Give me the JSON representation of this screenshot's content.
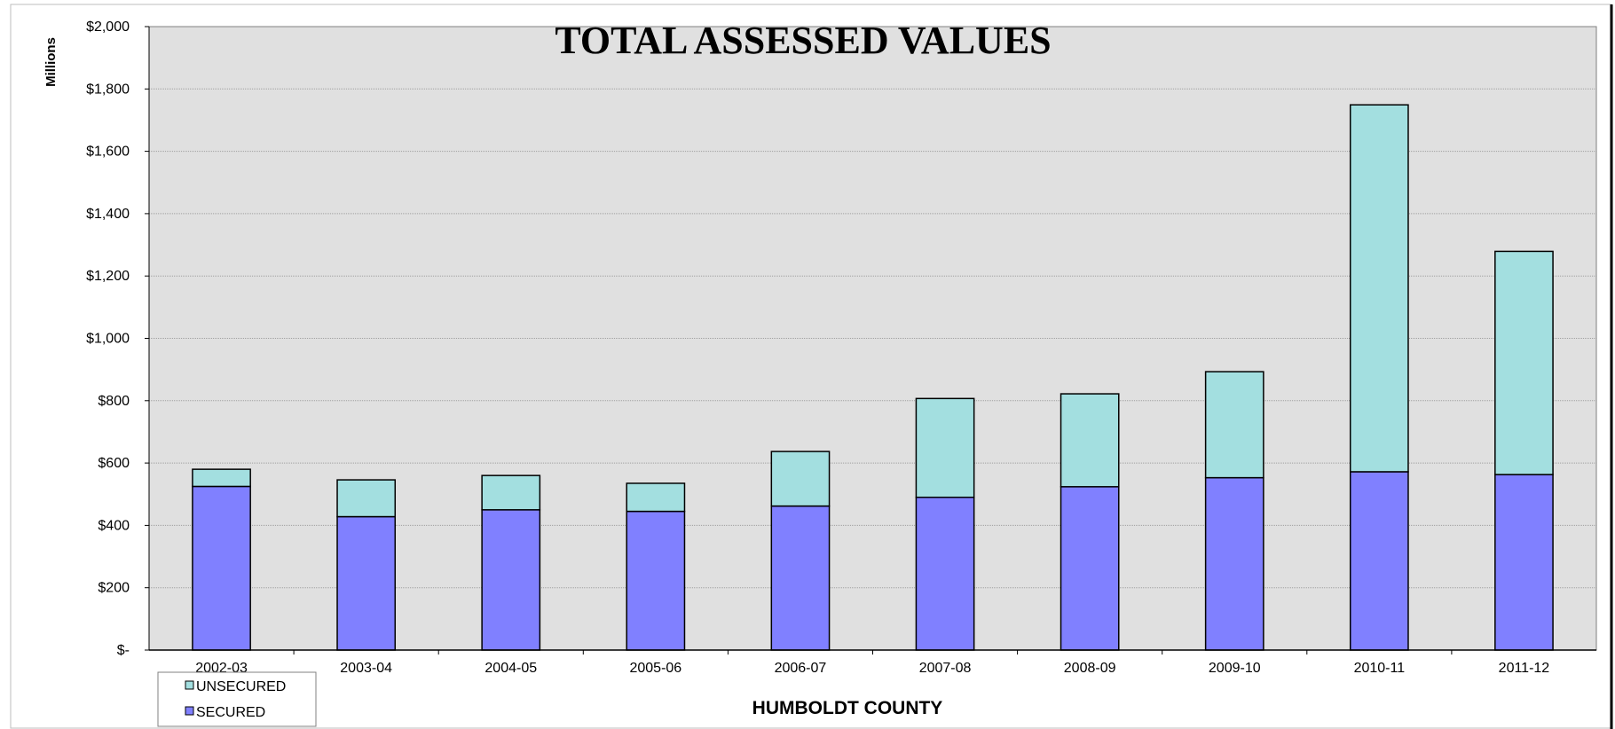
{
  "chart_data": {
    "type": "bar",
    "stacked": true,
    "title": "TOTAL ASSESSED VALUES",
    "xlabel": "HUMBOLDT COUNTY",
    "ylabel": "Millions",
    "ylim": [
      0,
      2000
    ],
    "ytick_step": 200,
    "ytick_labels": [
      "$-",
      "$200",
      "$400",
      "$600",
      "$800",
      "$1,000",
      "$1,200",
      "$1,400",
      "$1,600",
      "$1,800",
      "$2,000"
    ],
    "grid": true,
    "legend_position": "bottom-left",
    "categories": [
      "2002-03",
      "2003-04",
      "2004-05",
      "2005-06",
      "2006-07",
      "2007-08",
      "2008-09",
      "2009-10",
      "2010-11",
      "2011-12"
    ],
    "series": [
      {
        "name": "SECURED",
        "color": "#8080ff",
        "values": [
          525,
          428,
          450,
          445,
          462,
          490,
          524,
          553,
          572,
          563
        ]
      },
      {
        "name": "UNSECURED",
        "color": "#a3dfe0",
        "values": [
          55,
          118,
          110,
          90,
          175,
          317,
          298,
          340,
          1177,
          716
        ]
      }
    ],
    "legend_order": [
      "UNSECURED",
      "SECURED"
    ],
    "plot_background": "#e0e0e0"
  }
}
